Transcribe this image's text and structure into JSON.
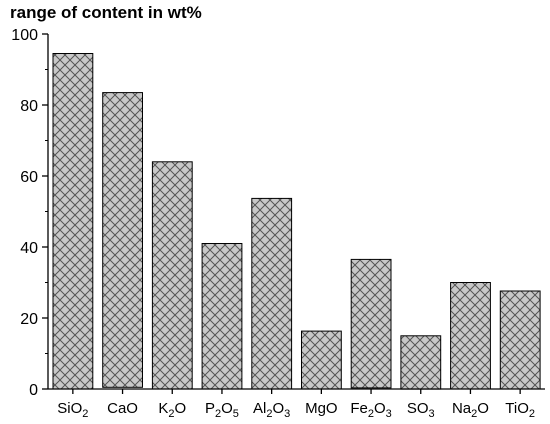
{
  "chart_data": {
    "type": "bar",
    "title": "range of content in wt%",
    "xlabel": "",
    "ylabel": "",
    "ylim": [
      0,
      100
    ],
    "yticks": [
      "0",
      "20",
      "40",
      "60",
      "80",
      "100"
    ],
    "grid": false,
    "categories": [
      {
        "base": "SiO",
        "sub": "2",
        "post": "",
        "sub2": ""
      },
      {
        "base": "CaO",
        "sub": "",
        "post": "",
        "sub2": ""
      },
      {
        "base": "K",
        "sub": "2",
        "post": "O",
        "sub2": ""
      },
      {
        "base": "P",
        "sub": "2",
        "post": "O",
        "sub2": "5"
      },
      {
        "base": "Al",
        "sub": "2",
        "post": "O",
        "sub2": "3"
      },
      {
        "base": "MgO",
        "sub": "",
        "post": "",
        "sub2": ""
      },
      {
        "base": "Fe",
        "sub": "2",
        "post": "O",
        "sub2": "3"
      },
      {
        "base": "SO",
        "sub": "3",
        "post": "",
        "sub2": ""
      },
      {
        "base": "Na",
        "sub": "2",
        "post": "O",
        "sub2": ""
      },
      {
        "base": "TiO",
        "sub": "2",
        "post": "",
        "sub2": ""
      }
    ],
    "ranges": [
      [
        0,
        94.5
      ],
      [
        0.5,
        83.5
      ],
      [
        0,
        64
      ],
      [
        0,
        41
      ],
      [
        0,
        53.7
      ],
      [
        0,
        16.3
      ],
      [
        0.3,
        36.5
      ],
      [
        0,
        15
      ],
      [
        0,
        30
      ],
      [
        0,
        27.6
      ]
    ],
    "bar_fill": "#c8c8c8",
    "hatch_color": "#555555",
    "edge_color": "#000000"
  }
}
